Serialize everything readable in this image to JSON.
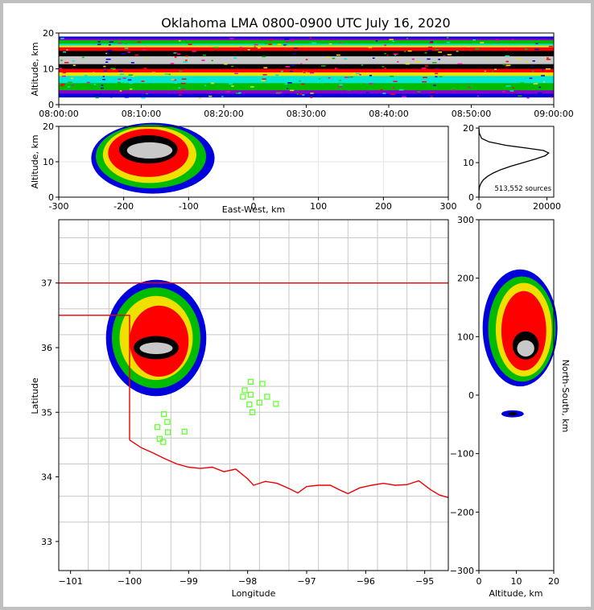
{
  "chart_data": [
    {
      "type": "heatmap",
      "panel": "time-altitude",
      "title": "Oklahoma LMA 0800-0900 UTC July 16, 2020",
      "ylabel": "Altitude, km",
      "xlabel": "",
      "x_ticks": [
        "08:00:00",
        "08:10:00",
        "08:20:00",
        "08:30:00",
        "08:40:00",
        "08:50:00",
        "09:00:00"
      ],
      "y_ticks": [
        "0",
        "10",
        "20"
      ],
      "xlim_min": [
        0,
        60
      ],
      "ylim": [
        0,
        20
      ],
      "layers": [
        {
          "band": [
            2,
            19
          ],
          "color": "#0000dd"
        },
        {
          "band": [
            3,
            18.5
          ],
          "color": "#8800cc"
        },
        {
          "band": [
            4,
            18
          ],
          "color": "#00bb00"
        },
        {
          "band": [
            6,
            17
          ],
          "color": "#00e8d0"
        },
        {
          "band": [
            8,
            16.5
          ],
          "color": "#f0e000"
        },
        {
          "band": [
            9,
            16
          ],
          "color": "#ff0000"
        },
        {
          "band": [
            10,
            15
          ],
          "color": "#000000"
        },
        {
          "band": [
            11.3,
            13.5
          ],
          "color": "#c8c8c8"
        }
      ]
    },
    {
      "type": "heatmap",
      "panel": "east-west-altitude",
      "xlabel": "East-West, km",
      "ylabel": "Altitude, km",
      "x_ticks": [
        "-300",
        "-200",
        "-100",
        "0",
        "100",
        "200",
        "300"
      ],
      "y_ticks": [
        "0",
        "10",
        "20"
      ],
      "xlim": [
        -300,
        300
      ],
      "ylim": [
        0,
        20
      ],
      "grid": true,
      "blobs": [
        {
          "cx": -155,
          "cy": 11,
          "rx": 95,
          "ry": 10,
          "color": "#0000dd"
        },
        {
          "cx": -158,
          "cy": 11.5,
          "rx": 85,
          "ry": 9,
          "color": "#00bb00"
        },
        {
          "cx": -160,
          "cy": 12,
          "rx": 72,
          "ry": 8,
          "color": "#f0e000"
        },
        {
          "cx": -162,
          "cy": 12.5,
          "rx": 62,
          "ry": 6.8,
          "color": "#ff0000"
        },
        {
          "cx": -162,
          "cy": 13.5,
          "rx": 45,
          "ry": 4,
          "color": "#000000"
        },
        {
          "cx": -160,
          "cy": 13.2,
          "rx": 35,
          "ry": 2.3,
          "color": "#c8c8c8"
        }
      ]
    },
    {
      "type": "line",
      "panel": "altitude-histogram",
      "annotation": "513,552 sources",
      "x_ticks": [
        "0",
        "20000"
      ],
      "y_ticks": [
        "0",
        "10",
        "20"
      ],
      "xlim": [
        0,
        22000
      ],
      "ylim": [
        0,
        20.5
      ],
      "x": [
        0,
        50,
        200,
        600,
        1300,
        2500,
        4200,
        6500,
        9500,
        13000,
        16500,
        19500,
        20500,
        19000,
        14000,
        8000,
        3000,
        800,
        150,
        10
      ],
      "y": [
        0,
        2,
        3,
        4,
        5,
        6,
        7,
        8,
        9,
        10,
        11,
        12,
        12.8,
        13.5,
        14.2,
        15,
        16,
        17,
        18.5,
        20
      ]
    },
    {
      "type": "map",
      "panel": "plan-view",
      "xlabel": "Longitude",
      "ylabel": "Latitude",
      "x_ticks": [
        "−101",
        "−100",
        "−99",
        "−98",
        "−97",
        "−96",
        "−95"
      ],
      "y_ticks": [
        "33",
        "34",
        "35",
        "36",
        "37"
      ],
      "xlim": [
        -101.2,
        -94.6
      ],
      "ylim": [
        32.55,
        37.98
      ],
      "county_grid_lon": [
        -100.7,
        -100.35,
        -99.8,
        -99.3,
        -98.8,
        -98.3,
        -97.8,
        -97.3,
        -96.8,
        -96.3,
        -95.8,
        -95.3,
        -94.9
      ],
      "county_grid_lat": [
        33.3,
        33.7,
        34.2,
        34.6,
        35.0,
        35.4,
        35.8,
        36.2,
        36.6,
        37.3,
        37.7
      ],
      "state_border": [
        [
          -101.2,
          37.0
        ],
        [
          -94.6,
          37.0
        ]
      ],
      "panhandle_border": [
        [
          -101.2,
          36.5
        ],
        [
          -100.0,
          36.5
        ],
        [
          -100.0,
          34.57
        ]
      ],
      "red_river": [
        [
          -100.0,
          34.57
        ],
        [
          -99.8,
          34.45
        ],
        [
          -99.6,
          34.37
        ],
        [
          -99.4,
          34.28
        ],
        [
          -99.2,
          34.2
        ],
        [
          -99.0,
          34.15
        ],
        [
          -98.8,
          34.13
        ],
        [
          -98.6,
          34.15
        ],
        [
          -98.4,
          34.08
        ],
        [
          -98.2,
          34.12
        ],
        [
          -98.0,
          33.97
        ],
        [
          -97.9,
          33.87
        ],
        [
          -97.7,
          33.93
        ],
        [
          -97.5,
          33.9
        ],
        [
          -97.3,
          33.82
        ],
        [
          -97.15,
          33.75
        ],
        [
          -97.0,
          33.85
        ],
        [
          -96.8,
          33.87
        ],
        [
          -96.6,
          33.87
        ],
        [
          -96.4,
          33.78
        ],
        [
          -96.3,
          33.74
        ],
        [
          -96.1,
          33.83
        ],
        [
          -95.9,
          33.87
        ],
        [
          -95.7,
          33.9
        ],
        [
          -95.5,
          33.87
        ],
        [
          -95.3,
          33.88
        ],
        [
          -95.1,
          33.94
        ],
        [
          -94.9,
          33.8
        ],
        [
          -94.75,
          33.72
        ],
        [
          -94.6,
          33.68
        ]
      ],
      "storm_blobs": [
        {
          "cx": -99.55,
          "cy": 36.15,
          "rx": 0.85,
          "ry": 0.9,
          "color": "#0000dd"
        },
        {
          "cx": -99.55,
          "cy": 36.15,
          "rx": 0.75,
          "ry": 0.78,
          "color": "#00bb00"
        },
        {
          "cx": -99.55,
          "cy": 36.15,
          "rx": 0.62,
          "ry": 0.65,
          "color": "#f0e000"
        },
        {
          "cx": -99.5,
          "cy": 36.1,
          "rx": 0.5,
          "ry": 0.55,
          "color": "#ff0000"
        },
        {
          "cx": -99.55,
          "cy": 36.0,
          "rx": 0.38,
          "ry": 0.18,
          "color": "#000000"
        },
        {
          "cx": -99.55,
          "cy": 35.99,
          "rx": 0.28,
          "ry": 0.09,
          "color": "#c8c8c8"
        }
      ],
      "stations": [
        [
          -97.95,
          35.47
        ],
        [
          -97.75,
          35.44
        ],
        [
          -98.05,
          35.34
        ],
        [
          -97.95,
          35.27
        ],
        [
          -98.08,
          35.24
        ],
        [
          -97.67,
          35.24
        ],
        [
          -97.8,
          35.15
        ],
        [
          -97.97,
          35.12
        ],
        [
          -97.52,
          35.13
        ],
        [
          -97.92,
          35.0
        ],
        [
          -99.42,
          34.97
        ],
        [
          -99.36,
          34.85
        ],
        [
          -99.53,
          34.77
        ],
        [
          -99.35,
          34.69
        ],
        [
          -99.07,
          34.7
        ],
        [
          -99.49,
          34.59
        ],
        [
          -99.43,
          34.54
        ]
      ]
    },
    {
      "type": "heatmap",
      "panel": "altitude-north-south",
      "xlabel": "Altitude, km",
      "ylabel": "North-South, km",
      "x_ticks": [
        "0",
        "10",
        "20"
      ],
      "y_ticks": [
        "−300",
        "−200",
        "−100",
        "0",
        "100",
        "200",
        "300"
      ],
      "xlim": [
        0,
        20
      ],
      "ylim": [
        -300,
        300
      ],
      "blobs": [
        {
          "cx": 11,
          "cy": 115,
          "rx": 10,
          "ry": 100,
          "color": "#0000dd"
        },
        {
          "cx": 11.5,
          "cy": 113,
          "rx": 9,
          "ry": 90,
          "color": "#00bb00"
        },
        {
          "cx": 12,
          "cy": 112,
          "rx": 7.5,
          "ry": 80,
          "color": "#f0e000"
        },
        {
          "cx": 12,
          "cy": 110,
          "rx": 6,
          "ry": 68,
          "color": "#ff0000"
        },
        {
          "cx": 12.5,
          "cy": 85,
          "rx": 3.5,
          "ry": 24,
          "color": "#000000"
        },
        {
          "cx": 12.5,
          "cy": 80,
          "rx": 2.3,
          "ry": 14,
          "color": "#c8c8c8"
        },
        {
          "cx": 9,
          "cy": -32,
          "rx": 3,
          "ry": 6,
          "color": "#0000dd"
        },
        {
          "cx": 9,
          "cy": -32,
          "rx": 1.2,
          "ry": 3,
          "color": "#000000"
        }
      ]
    }
  ]
}
